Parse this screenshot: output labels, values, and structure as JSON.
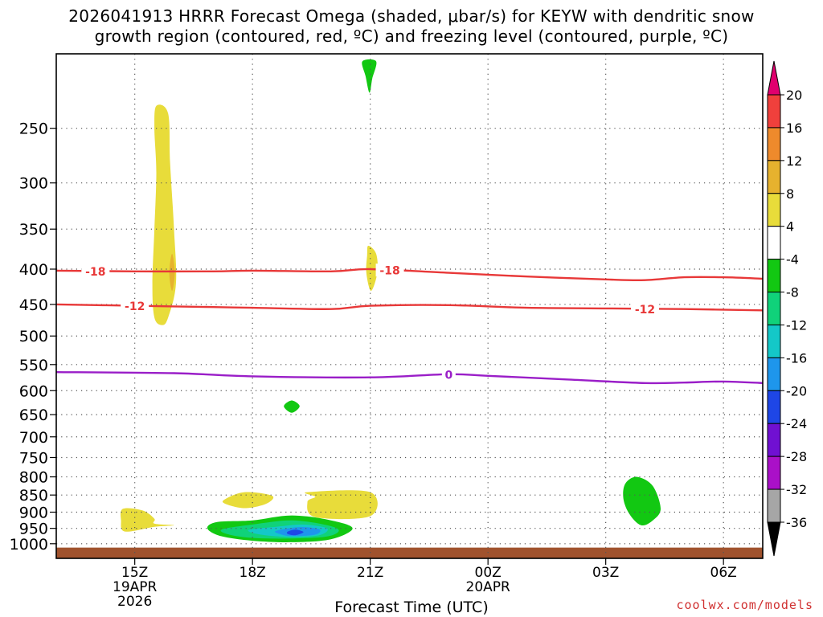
{
  "title_line1": "2026041913 HRRR Forecast Omega (shaded, μbar/s) for KEYW with dendritic snow",
  "title_line2": "growth region (contoured, red, ºC) and freezing level (contoured, purple, ºC)",
  "credit": "coolwx.com/models",
  "chart_data": {
    "type": "heatmap",
    "xlabel": "Forecast Time (UTC)",
    "y_axis": {
      "scale": "log-pressure",
      "inverted": true,
      "range": [
        1050,
        195
      ],
      "ticks": [
        250,
        300,
        350,
        400,
        450,
        500,
        550,
        600,
        650,
        700,
        750,
        800,
        850,
        900,
        950,
        1000
      ]
    },
    "x_axis": {
      "unit": "hours since 2026-04-19 13Z",
      "range": [
        0,
        18
      ],
      "ticks": [
        {
          "x": 2,
          "labels": [
            "15Z",
            "19APR",
            "2026"
          ]
        },
        {
          "x": 5,
          "labels": [
            "18Z"
          ]
        },
        {
          "x": 8,
          "labels": [
            "21Z"
          ]
        },
        {
          "x": 11,
          "labels": [
            "00Z",
            "20APR"
          ]
        },
        {
          "x": 14,
          "labels": [
            "03Z"
          ]
        },
        {
          "x": 17,
          "labels": [
            "06Z"
          ]
        }
      ]
    },
    "grid": true,
    "colorbar": {
      "placement": "right",
      "levels": [
        {
          "label": "20",
          "color": "#e0006e"
        },
        {
          "label": "16",
          "color": "#f0403c"
        },
        {
          "label": "12",
          "color": "#ee8a2c"
        },
        {
          "label": "8",
          "color": "#e6b22e"
        },
        {
          "label": "4",
          "color": "#e8dc3a"
        },
        {
          "label": "-4",
          "color": "#ffffff"
        },
        {
          "label": "-8",
          "color": "#12c812"
        },
        {
          "label": "-12",
          "color": "#10d27a"
        },
        {
          "label": "-16",
          "color": "#14c8c8"
        },
        {
          "label": "-20",
          "color": "#1e96ec"
        },
        {
          "label": "-24",
          "color": "#1e46e6"
        },
        {
          "label": "-28",
          "color": "#7010d2"
        },
        {
          "label": "-32",
          "color": "#aa10c8"
        },
        {
          "label": "-36",
          "color": "#a6a6a6"
        },
        {
          "label": "",
          "color": "#000000"
        }
      ]
    },
    "contours": [
      {
        "name": "-18",
        "color": "#e83838",
        "label_at": [
          1,
          8.5
        ],
        "points": [
          [
            0,
            402
          ],
          [
            2,
            403
          ],
          [
            4,
            403
          ],
          [
            5,
            402
          ],
          [
            7,
            403
          ],
          [
            8,
            400
          ],
          [
            10,
            405
          ],
          [
            12,
            410
          ],
          [
            14,
            414
          ],
          [
            15,
            415
          ],
          [
            16,
            411
          ],
          [
            17,
            411
          ],
          [
            18,
            413
          ]
        ]
      },
      {
        "name": "-12",
        "color": "#e83838",
        "label_at": [
          2,
          15
        ],
        "points": [
          [
            0,
            450
          ],
          [
            2,
            452
          ],
          [
            4,
            454
          ],
          [
            5,
            455
          ],
          [
            7,
            457
          ],
          [
            8,
            452
          ],
          [
            10,
            451
          ],
          [
            12,
            455
          ],
          [
            14,
            456
          ],
          [
            16,
            457
          ],
          [
            18,
            459
          ]
        ]
      },
      {
        "name": "0",
        "color": "#9a1ec8",
        "label_at": [
          10
        ],
        "points": [
          [
            0,
            564
          ],
          [
            3,
            566
          ],
          [
            5,
            572
          ],
          [
            8,
            574
          ],
          [
            10,
            568
          ],
          [
            11,
            571
          ],
          [
            13,
            578
          ],
          [
            15,
            585
          ],
          [
            16,
            584
          ],
          [
            17,
            582
          ],
          [
            18,
            585
          ]
        ]
      }
    ],
    "omega_shading": [
      {
        "color": "#e8dc3a",
        "points": [
          [
            2.55,
            232
          ],
          [
            2.85,
            238
          ],
          [
            2.9,
            280
          ],
          [
            3.0,
            350
          ],
          [
            3.05,
            420
          ],
          [
            2.85,
            470
          ],
          [
            2.7,
            482
          ],
          [
            2.5,
            470
          ],
          [
            2.45,
            420
          ],
          [
            2.5,
            350
          ],
          [
            2.55,
            290
          ],
          [
            2.5,
            250
          ]
        ]
      },
      {
        "color": "#e6b22e",
        "points": [
          [
            2.95,
            380
          ],
          [
            3.02,
            405
          ],
          [
            2.95,
            430
          ],
          [
            2.88,
            405
          ]
        ]
      },
      {
        "color": "#e8dc3a",
        "points": [
          [
            7.95,
            370
          ],
          [
            8.15,
            380
          ],
          [
            8.18,
            405
          ],
          [
            8.02,
            430
          ],
          [
            7.9,
            405
          ],
          [
            7.92,
            382
          ]
        ]
      },
      {
        "color": "#12c812",
        "points": [
          [
            7.8,
            200
          ],
          [
            8.15,
            200
          ],
          [
            8.05,
            212
          ],
          [
            7.98,
            222
          ],
          [
            7.88,
            210
          ]
        ]
      },
      {
        "color": "#12c812",
        "points": [
          [
            6.0,
            620
          ],
          [
            6.2,
            632
          ],
          [
            6.0,
            646
          ],
          [
            5.8,
            632
          ]
        ]
      },
      {
        "color": "#e8dc3a",
        "points": [
          [
            1.7,
            890
          ],
          [
            2.2,
            895
          ],
          [
            2.5,
            920
          ],
          [
            2.5,
            935
          ],
          [
            3.0,
            940
          ],
          [
            2.5,
            945
          ],
          [
            1.75,
            960
          ],
          [
            1.65,
            925
          ]
        ]
      },
      {
        "color": "#e8dc3a",
        "points": [
          [
            4.3,
            862
          ],
          [
            4.8,
            842
          ],
          [
            5.5,
            852
          ],
          [
            5.35,
            875
          ],
          [
            4.8,
            888
          ],
          [
            4.3,
            875
          ]
        ]
      },
      {
        "color": "#e8dc3a",
        "points": [
          [
            6.4,
            842
          ],
          [
            8.0,
            842
          ],
          [
            8.0,
            912
          ],
          [
            6.6,
            915
          ],
          [
            6.4,
            870
          ],
          [
            6.6,
            855
          ]
        ]
      },
      {
        "color": "#12c812",
        "points": [
          [
            3.85,
            950
          ],
          [
            4.1,
            930
          ],
          [
            5.0,
            925
          ],
          [
            6.0,
            910
          ],
          [
            7.0,
            925
          ],
          [
            7.55,
            950
          ],
          [
            7.0,
            985
          ],
          [
            6.0,
            995
          ],
          [
            5.0,
            990
          ],
          [
            4.2,
            975
          ]
        ]
      },
      {
        "color": "#10d27a",
        "points": [
          [
            4.2,
            955
          ],
          [
            5.0,
            938
          ],
          [
            6.0,
            925
          ],
          [
            6.9,
            940
          ],
          [
            7.2,
            958
          ],
          [
            6.8,
            978
          ],
          [
            5.5,
            983
          ],
          [
            4.6,
            975
          ]
        ]
      },
      {
        "color": "#14c8c8",
        "points": [
          [
            4.9,
            955
          ],
          [
            5.6,
            945
          ],
          [
            6.3,
            938
          ],
          [
            6.9,
            950
          ],
          [
            6.7,
            972
          ],
          [
            6.0,
            978
          ],
          [
            5.2,
            970
          ]
        ]
      },
      {
        "color": "#1e96ec",
        "points": [
          [
            5.6,
            958
          ],
          [
            6.2,
            946
          ],
          [
            6.7,
            953
          ],
          [
            6.6,
            970
          ],
          [
            6.0,
            975
          ],
          [
            5.7,
            968
          ]
        ]
      },
      {
        "color": "#1e46e6",
        "points": [
          [
            5.9,
            960
          ],
          [
            6.1,
            954
          ],
          [
            6.3,
            962
          ],
          [
            6.1,
            972
          ],
          [
            5.9,
            968
          ]
        ]
      },
      {
        "color": "#12c812",
        "points": [
          [
            14.5,
            818
          ],
          [
            14.8,
            800
          ],
          [
            15.2,
            825
          ],
          [
            15.4,
            890
          ],
          [
            15.2,
            925
          ],
          [
            14.9,
            940
          ],
          [
            14.6,
            905
          ],
          [
            14.45,
            860
          ]
        ]
      }
    ],
    "ground": {
      "color": "#a0522d",
      "from_pressure": 1013
    }
  }
}
